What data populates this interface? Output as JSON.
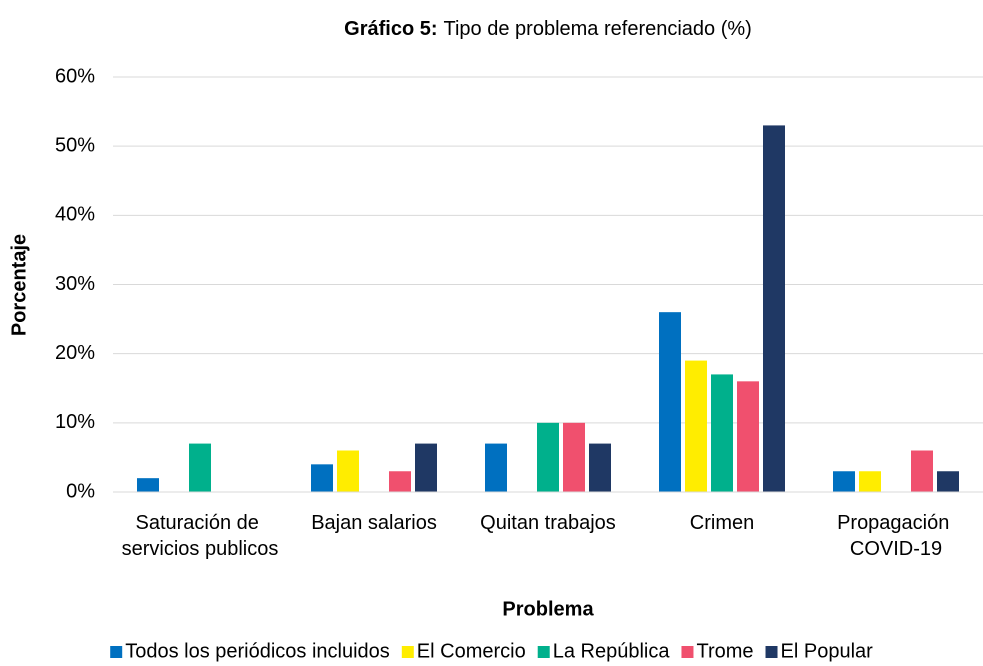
{
  "chart_data": {
    "type": "bar",
    "title_prefix": "Gráfico 5:",
    "title": "Tipo de problema referenciado (%)",
    "xlabel": "Problema",
    "ylabel": "Porcentaje",
    "categories": [
      "Saturación de servicios publicos",
      "Bajan salarios",
      "Quitan trabajos",
      "Crimen",
      "Propagación COVID-19"
    ],
    "series": [
      {
        "name": "Todos los periódicos incluidos",
        "color": "#0070c0",
        "values": [
          2,
          4,
          7,
          26,
          3
        ]
      },
      {
        "name": "El Comercio",
        "color": "#ffed00",
        "values": [
          0,
          6,
          0,
          19,
          3
        ]
      },
      {
        "name": "La República",
        "color": "#00b08c",
        "values": [
          7,
          0,
          10,
          17,
          0
        ]
      },
      {
        "name": "Trome",
        "color": "#f0506e",
        "values": [
          0,
          3,
          10,
          16,
          6
        ]
      },
      {
        "name": "El Popular",
        "color": "#1f3864",
        "values": [
          0,
          7,
          7,
          53,
          3
        ]
      }
    ],
    "ylim": [
      0,
      60
    ],
    "yticks": [
      {
        "value": 0,
        "label": "0%"
      },
      {
        "value": 10,
        "label": "10%"
      },
      {
        "value": 20,
        "label": "20%"
      },
      {
        "value": 30,
        "label": "30%"
      },
      {
        "value": 40,
        "label": "40%"
      },
      {
        "value": 50,
        "label": "50%"
      },
      {
        "value": 60,
        "label": "60%"
      }
    ],
    "grid": true,
    "legend": "bottom"
  }
}
